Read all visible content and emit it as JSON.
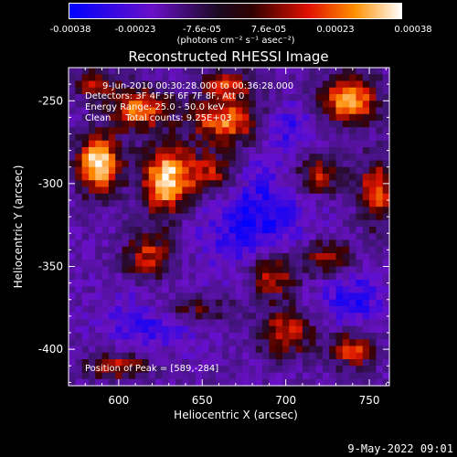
{
  "chart_data": {
    "type": "heatmap",
    "title": "Reconstructed RHESSI Image",
    "xlabel": "Heliocentric X (arcsec)",
    "ylabel": "Heliocentric Y (arcsec)",
    "xlim": [
      570,
      762
    ],
    "ylim": [
      -422,
      -230
    ],
    "xticks": [
      600,
      650,
      700,
      750
    ],
    "yticks": [
      -400,
      -350,
      -300,
      -250
    ],
    "colorbar": {
      "min": -0.00038,
      "max": 0.00038,
      "tick_labels": [
        "-0.00038",
        "-0.00023",
        "-7.6e-05",
        "7.6e-05",
        "0.00023",
        "0.00038"
      ],
      "label": "(photons cm⁻² s⁻¹ asec⁻²)"
    },
    "annotations": [
      "9-Jun-2010 00:30:28.000 to 00:36:28.000",
      "Detectors: 3F 4F 5F 6F 7F 8F, Att 0",
      "Energy Range: 25.0 - 50.0 keV",
      "Clean     Total counts: 9.25E+03"
    ],
    "peak_label": "Position of Peak = [589,-284]",
    "peak_position": [
      589,
      -284
    ],
    "peak_value": 0.00038,
    "grid": false,
    "sources": [
      {
        "x": 588,
        "y": -288,
        "sx": 9,
        "sy": 12,
        "a": 1.0
      },
      {
        "x": 628,
        "y": -298,
        "sx": 10,
        "sy": 14,
        "a": 0.95
      },
      {
        "x": 612,
        "y": -255,
        "sx": 12,
        "sy": 9,
        "a": 0.7
      },
      {
        "x": 665,
        "y": -262,
        "sx": 16,
        "sy": 10,
        "a": 0.75
      },
      {
        "x": 655,
        "y": -295,
        "sx": 12,
        "sy": 10,
        "a": 0.6
      },
      {
        "x": 738,
        "y": -250,
        "sx": 12,
        "sy": 10,
        "a": 0.85
      },
      {
        "x": 720,
        "y": -295,
        "sx": 10,
        "sy": 8,
        "a": 0.55
      },
      {
        "x": 755,
        "y": -305,
        "sx": 8,
        "sy": 14,
        "a": 0.65
      },
      {
        "x": 618,
        "y": -345,
        "sx": 10,
        "sy": 12,
        "a": 0.55
      },
      {
        "x": 692,
        "y": -355,
        "sx": 10,
        "sy": 10,
        "a": 0.6
      },
      {
        "x": 725,
        "y": -345,
        "sx": 12,
        "sy": 8,
        "a": 0.5
      },
      {
        "x": 640,
        "y": -375,
        "sx": 18,
        "sy": 6,
        "a": 0.45
      },
      {
        "x": 700,
        "y": -390,
        "sx": 12,
        "sy": 10,
        "a": 0.55
      },
      {
        "x": 740,
        "y": -400,
        "sx": 10,
        "sy": 8,
        "a": 0.6
      },
      {
        "x": 600,
        "y": -410,
        "sx": 14,
        "sy": 6,
        "a": 0.5
      },
      {
        "x": 665,
        "y": -240,
        "sx": 12,
        "sy": 6,
        "a": 0.5
      },
      {
        "x": 585,
        "y": -240,
        "sx": 10,
        "sy": 6,
        "a": 0.45
      }
    ],
    "negative_regions": [
      {
        "x": 680,
        "y": -320,
        "sx": 22,
        "sy": 22,
        "a": 0.55
      },
      {
        "x": 620,
        "y": -380,
        "sx": 18,
        "sy": 14,
        "a": 0.5
      },
      {
        "x": 740,
        "y": -370,
        "sx": 14,
        "sy": 14,
        "a": 0.45
      },
      {
        "x": 700,
        "y": -265,
        "sx": 14,
        "sy": 10,
        "a": 0.4
      }
    ]
  },
  "timestamp": "9-May-2022 09:01"
}
